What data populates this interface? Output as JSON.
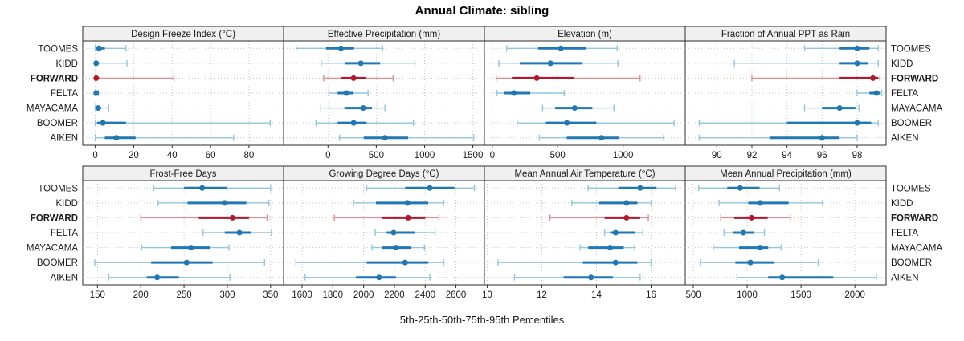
{
  "title": "Annual Climate: sibling",
  "footer": "5th-25th-50th-75th-95th Percentiles",
  "colors": {
    "series_dark": "#1f77b4",
    "series_light": "#92c5de",
    "highlight_dark": "#b2182b",
    "highlight_light": "#dd8e8e",
    "grid": "#c3c3c3",
    "panel_border": "#2b2b2b",
    "strip_bg": "#f0f0f0",
    "text": "#1a1a1a"
  },
  "chart_data": {
    "type": "scatter",
    "subtype": "percentile-dotplot-grid",
    "title": "Annual Climate: sibling",
    "xlabel": "5th-25th-50th-75th-95th Percentiles",
    "grid_on": true,
    "legend_position": "none",
    "percentile_labels": [
      "5th",
      "25th",
      "50th",
      "75th",
      "95th"
    ],
    "rows": [
      "TOOMES",
      "KIDD",
      "FORWARD",
      "FELTA",
      "MAYACAMA",
      "BOOMER",
      "AIKEN"
    ],
    "highlight_row": "FORWARD",
    "panels": [
      {
        "title": "Design Freeze Index (°C)",
        "row": 0,
        "col": 0,
        "xlim": [
          -6.5,
          98
        ],
        "ticks": [
          0,
          20,
          40,
          60,
          80
        ],
        "values": {
          "TOOMES": [
            0,
            0.5,
            2,
            5,
            16
          ],
          "KIDD": [
            0,
            0,
            0.5,
            1.5,
            16.5
          ],
          "FORWARD": [
            0,
            0,
            0.5,
            2,
            41
          ],
          "FELTA": [
            0,
            0,
            0.5,
            1,
            1.5
          ],
          "MAYACAMA": [
            0,
            0.5,
            1.5,
            3,
            7
          ],
          "BOOMER": [
            0,
            1,
            4,
            16,
            91
          ],
          "AIKEN": [
            0,
            5,
            11,
            21,
            72
          ]
        }
      },
      {
        "title": "Effective Precipitation (mm)",
        "row": 0,
        "col": 1,
        "xlim": [
          -460,
          1620
        ],
        "ticks": [
          0,
          500,
          1000,
          1500
        ],
        "values": {
          "TOOMES": [
            -330,
            -20,
            135,
            270,
            565
          ],
          "KIDD": [
            -70,
            180,
            340,
            540,
            900
          ],
          "FORWARD": [
            -45,
            140,
            265,
            395,
            675
          ],
          "FELTA": [
            10,
            100,
            190,
            265,
            415
          ],
          "MAYACAMA": [
            -75,
            170,
            365,
            455,
            590
          ],
          "BOOMER": [
            -125,
            100,
            265,
            400,
            885
          ],
          "AIKEN": [
            120,
            370,
            590,
            830,
            1510
          ]
        }
      },
      {
        "title": "Elevation (m)",
        "row": 0,
        "col": 2,
        "xlim": [
          -60,
          1475
        ],
        "ticks": [
          0,
          500,
          1000
        ],
        "values": {
          "TOOMES": [
            110,
            350,
            525,
            715,
            955
          ],
          "KIDD": [
            50,
            210,
            445,
            690,
            960
          ],
          "FORWARD": [
            30,
            150,
            340,
            625,
            1130
          ],
          "FELTA": [
            35,
            90,
            165,
            290,
            550
          ],
          "MAYACAMA": [
            385,
            480,
            630,
            765,
            930
          ],
          "BOOMER": [
            190,
            410,
            570,
            795,
            1390
          ],
          "AIKEN": [
            360,
            570,
            835,
            970,
            1310
          ]
        }
      },
      {
        "title": "Fraction of Annual PPT as Rain",
        "row": 0,
        "col": 3,
        "xlim": [
          88.2,
          99.65
        ],
        "ticks": [
          90,
          92,
          94,
          96,
          98
        ],
        "values": {
          "TOOMES": [
            95,
            97,
            98,
            98.7,
            99.2
          ],
          "KIDD": [
            91,
            97,
            98,
            98.6,
            99.2
          ],
          "FORWARD": [
            92,
            97,
            98.9,
            99.2,
            99.3
          ],
          "FELTA": [
            98,
            98.7,
            99.1,
            99.3,
            99.4
          ],
          "MAYACAMA": [
            95,
            96,
            97,
            97.9,
            98.1
          ],
          "BOOMER": [
            89,
            94,
            98,
            98.8,
            99.2
          ],
          "AIKEN": [
            89,
            93,
            96,
            97,
            98
          ]
        }
      },
      {
        "title": "Frost-Free Days",
        "row": 1,
        "col": 0,
        "xlim": [
          133,
          365
        ],
        "ticks": [
          150,
          200,
          250,
          300,
          350
        ],
        "values": {
          "TOOMES": [
            215,
            250,
            271,
            300,
            350
          ],
          "KIDD": [
            220,
            254,
            297,
            322,
            348
          ],
          "FORWARD": [
            200,
            267,
            306,
            325,
            346
          ],
          "FELTA": [
            272,
            297,
            314,
            327,
            351
          ],
          "MAYACAMA": [
            201,
            235,
            258,
            280,
            302
          ],
          "BOOMER": [
            147,
            212,
            253,
            283,
            343
          ],
          "AIKEN": [
            163,
            207,
            219,
            244,
            303
          ]
        }
      },
      {
        "title": "Growing Degree Days (°C)",
        "row": 1,
        "col": 1,
        "xlim": [
          1480,
          2785
        ],
        "ticks": [
          1600,
          1800,
          2000,
          2200,
          2400,
          2600
        ],
        "values": {
          "TOOMES": [
            2020,
            2270,
            2430,
            2590,
            2720
          ],
          "KIDD": [
            1935,
            2080,
            2285,
            2420,
            2520
          ],
          "FORWARD": [
            1810,
            2120,
            2290,
            2400,
            2490
          ],
          "FELTA": [
            2075,
            2150,
            2195,
            2330,
            2465
          ],
          "MAYACAMA": [
            2055,
            2120,
            2210,
            2305,
            2395
          ],
          "BOOMER": [
            1560,
            2020,
            2270,
            2420,
            2520
          ],
          "AIKEN": [
            1620,
            1950,
            2100,
            2210,
            2430
          ]
        }
      },
      {
        "title": "Mean Annual Air Temperature (°C)",
        "row": 1,
        "col": 2,
        "xlim": [
          9.9,
          17.25
        ],
        "ticks": [
          10,
          12,
          14,
          16
        ],
        "values": {
          "TOOMES": [
            13.7,
            14.8,
            15.6,
            16.2,
            16.9
          ],
          "KIDD": [
            13.1,
            14.1,
            15.1,
            15.5,
            16.0
          ],
          "FORWARD": [
            12.3,
            14.3,
            15.1,
            15.6,
            15.9
          ],
          "FELTA": [
            14.3,
            14.5,
            14.7,
            15.4,
            15.7
          ],
          "MAYACAMA": [
            13.4,
            13.7,
            14.5,
            15.0,
            15.4
          ],
          "BOOMER": [
            10.4,
            13.5,
            14.7,
            15.5,
            16.0
          ],
          "AIKEN": [
            11.0,
            12.8,
            13.8,
            14.6,
            15.6
          ]
        }
      },
      {
        "title": "Mean Annual Precipitation (mm)",
        "row": 1,
        "col": 3,
        "xlim": [
          425,
          2290
        ],
        "ticks": [
          500,
          1000,
          1500,
          2000
        ],
        "values": {
          "TOOMES": [
            550,
            815,
            935,
            1115,
            1300
          ],
          "KIDD": [
            740,
            1010,
            1120,
            1385,
            1700
          ],
          "FORWARD": [
            755,
            880,
            1040,
            1190,
            1400
          ],
          "FELTA": [
            785,
            865,
            965,
            1060,
            1160
          ],
          "MAYACAMA": [
            685,
            925,
            1120,
            1195,
            1315
          ],
          "BOOMER": [
            565,
            890,
            1030,
            1250,
            1660
          ],
          "AIKEN": [
            905,
            1195,
            1325,
            1800,
            2200
          ]
        }
      }
    ]
  }
}
